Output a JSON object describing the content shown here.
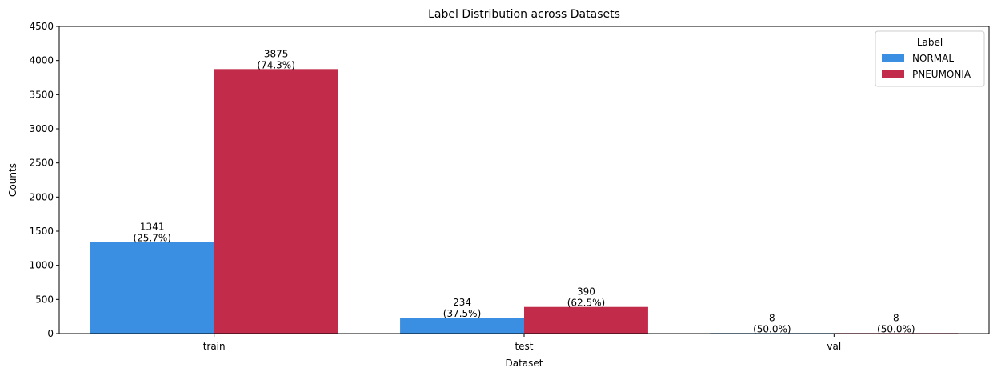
{
  "chart_data": {
    "type": "bar",
    "title": "Label Distribution across Datasets",
    "xlabel": "Dataset",
    "ylabel": "Counts",
    "ylim": [
      0,
      4500
    ],
    "yticks": [
      0,
      500,
      1000,
      1500,
      2000,
      2500,
      3000,
      3500,
      4000,
      4500
    ],
    "categories": [
      "train",
      "test",
      "val"
    ],
    "series": [
      {
        "name": "NORMAL",
        "color": "#3a8fe3",
        "values": [
          1341,
          234,
          8
        ],
        "labels": [
          [
            "1341",
            "(25.7%)"
          ],
          [
            "234",
            "(37.5%)"
          ],
          [
            "8",
            "(50.0%)"
          ]
        ]
      },
      {
        "name": "PNEUMONIA",
        "color": "#c22b4a",
        "values": [
          3875,
          390,
          8
        ],
        "labels": [
          [
            "3875",
            "(74.3%)"
          ],
          [
            "390",
            "(62.5%)"
          ],
          [
            "8",
            "(50.0%)"
          ]
        ]
      }
    ],
    "legend": {
      "title": "Label",
      "placement": "top-right"
    },
    "grid": false
  }
}
